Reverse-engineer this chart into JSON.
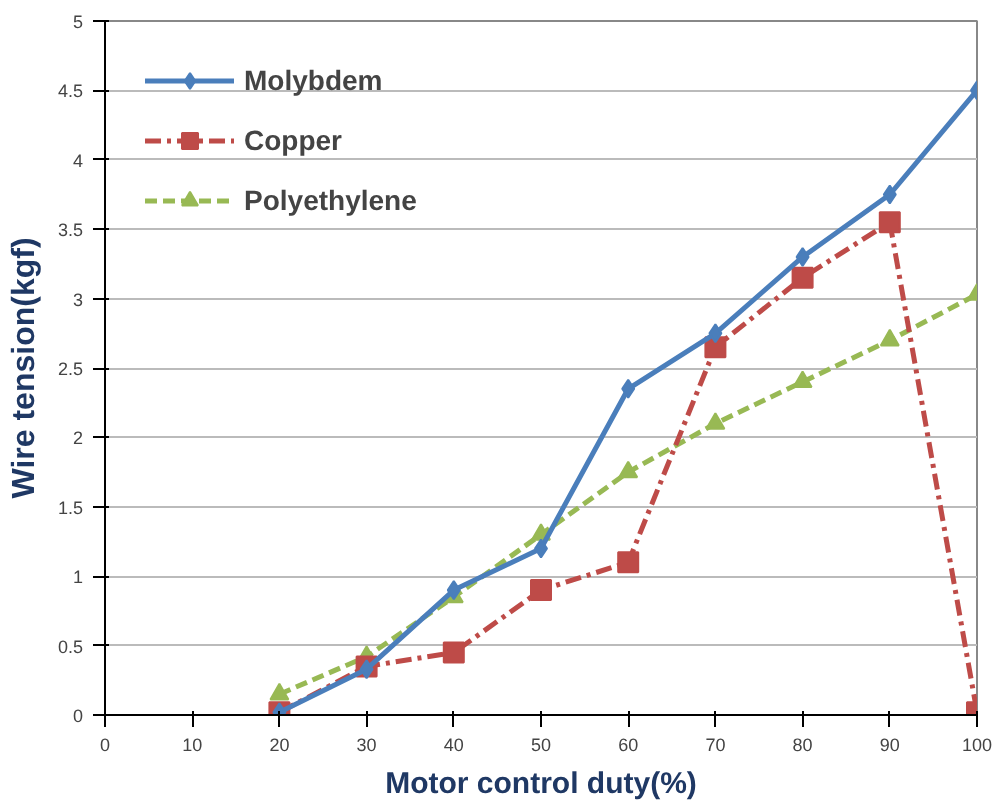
{
  "chart_data": {
    "type": "line",
    "xlabel": "Motor control duty(%)",
    "ylabel": "Wire tension(kgf)",
    "xlim": [
      0,
      100
    ],
    "xticks": [
      0,
      10,
      20,
      30,
      40,
      50,
      60,
      70,
      80,
      90,
      100
    ],
    "ylim": [
      0,
      5
    ],
    "yticks": [
      0,
      0.5,
      1,
      1.5,
      2,
      2.5,
      3,
      3.5,
      4,
      4.5,
      5
    ],
    "grid": "y",
    "legend": "top left",
    "x": [
      20,
      30,
      40,
      50,
      60,
      70,
      80,
      90,
      100
    ],
    "series": [
      {
        "name": "Molybdem",
        "color": "#4a7ebb",
        "marker": "diamond",
        "line_style": "solid",
        "values": [
          0.02,
          0.33,
          0.9,
          1.2,
          2.35,
          2.75,
          3.3,
          3.75,
          4.5
        ]
      },
      {
        "name": "Copper",
        "color": "#be4b48",
        "marker": "square",
        "line_style": "dashdot",
        "values": [
          0.02,
          0.35,
          0.45,
          0.9,
          1.1,
          2.65,
          3.15,
          3.55,
          0.02
        ]
      },
      {
        "name": "Polyethylene",
        "color": "#98b954",
        "marker": "triangle",
        "line_style": "dashed",
        "values": [
          0.15,
          0.42,
          0.85,
          1.3,
          1.75,
          2.1,
          2.4,
          2.7,
          3.03
        ]
      }
    ]
  }
}
